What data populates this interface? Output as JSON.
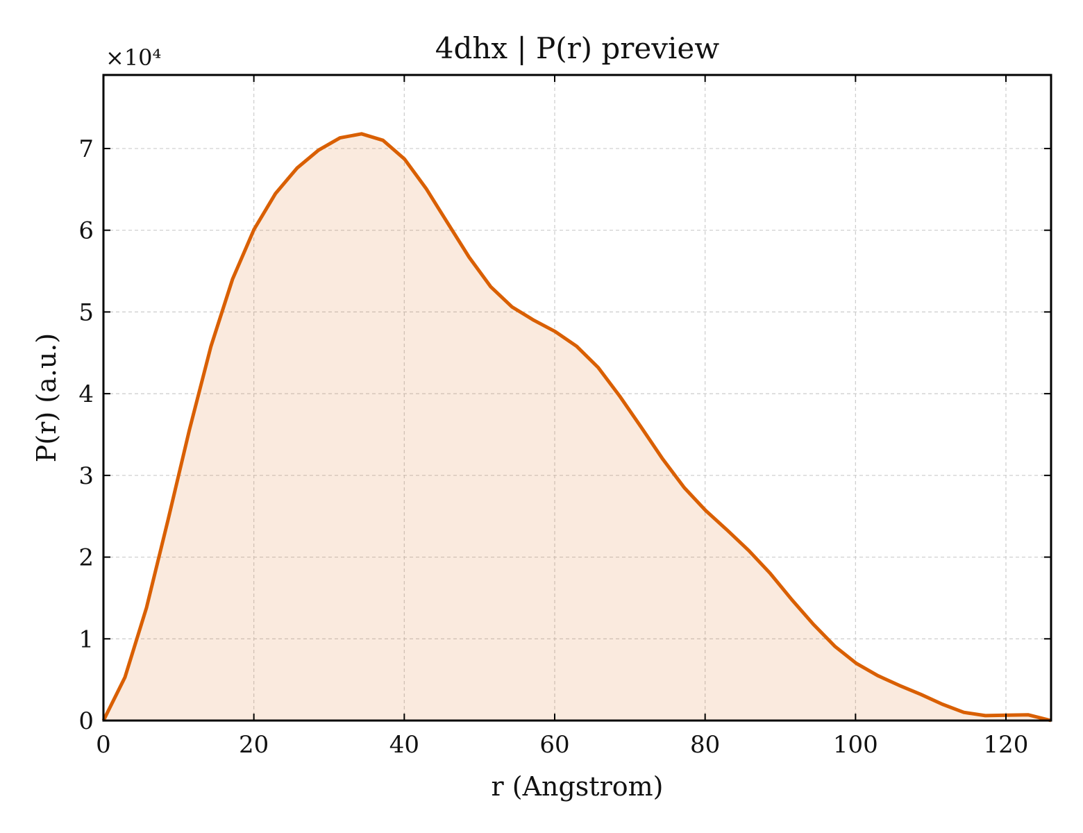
{
  "chart_data": {
    "type": "area",
    "title": "4dhx | P(r) preview",
    "xlabel": "r (Angstrom)",
    "ylabel": "P(r) (a.u.)",
    "y_multiplier_label": "×10⁴",
    "y_scale": 10000,
    "xlim": [
      0,
      126
    ],
    "ylim": [
      0,
      79000
    ],
    "x_ticks": [
      0,
      20,
      40,
      60,
      80,
      100,
      120
    ],
    "x_tick_labels": [
      "0",
      "20",
      "40",
      "60",
      "80",
      "100",
      "120"
    ],
    "y_ticks": [
      0,
      10000,
      20000,
      30000,
      40000,
      50000,
      60000,
      70000
    ],
    "y_tick_labels": [
      "0",
      "1",
      "2",
      "3",
      "4",
      "5",
      "6",
      "7"
    ],
    "grid": true,
    "line_color": "#d95f02",
    "fill_color": "#d95f02",
    "x": [
      0,
      2.86,
      5.72,
      8.58,
      11.44,
      14.3,
      17.16,
      20.02,
      22.88,
      25.74,
      28.6,
      31.46,
      34.32,
      37.18,
      40.04,
      42.9,
      45.76,
      48.62,
      51.48,
      54.34,
      57.2,
      60.06,
      62.92,
      65.78,
      68.64,
      71.5,
      74.36,
      77.22,
      80.08,
      82.94,
      85.8,
      88.66,
      91.52,
      94.38,
      97.24,
      100.1,
      102.96,
      105.82,
      108.68,
      111.54,
      114.4,
      117.26,
      120.12,
      122.98,
      126
    ],
    "y": [
      0,
      5300,
      13800,
      24500,
      35600,
      45800,
      54000,
      60100,
      64500,
      67600,
      69800,
      71300,
      71800,
      71000,
      68700,
      65100,
      60900,
      56700,
      53100,
      50600,
      49000,
      47600,
      45800,
      43200,
      39700,
      35900,
      32000,
      28500,
      25700,
      23300,
      20800,
      18000,
      14800,
      11800,
      9100,
      7000,
      5500,
      4300,
      3200,
      2000,
      1000,
      600,
      650,
      700,
      0
    ]
  }
}
